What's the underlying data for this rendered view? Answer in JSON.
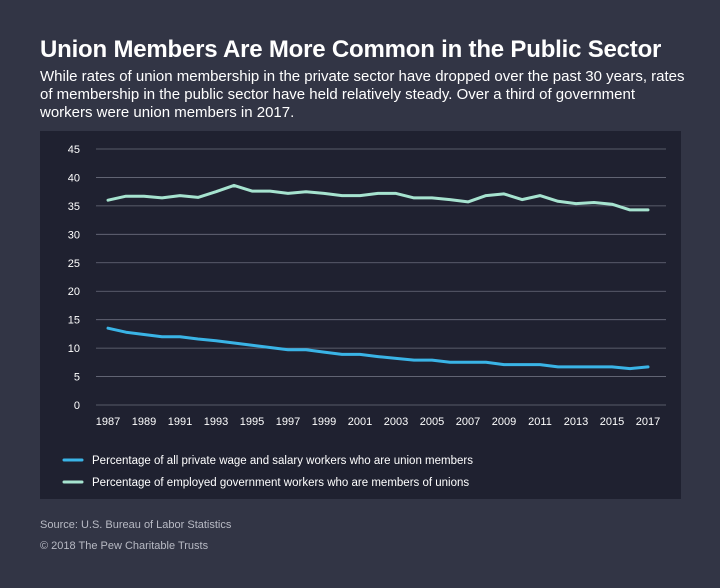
{
  "header": {
    "title": "Union Members Are More Common in the Public Sector",
    "subtitle": "While rates of union membership in the private sector have dropped over the past 30 years, rates of membership in the public sector have held relatively steady. Over a third of government workers were union members in 2017."
  },
  "footer": {
    "source": "Source: U.S. Bureau of Labor Statistics",
    "copyright": "© 2018 The Pew Charitable Trusts"
  },
  "colors": {
    "background": "#323545",
    "panel": "#1f2130",
    "private": "#3ab4e6",
    "government": "#a6e3cf",
    "grid": "#6b6e7d"
  },
  "chart_data": {
    "type": "line",
    "x": [
      1987,
      1988,
      1989,
      1990,
      1991,
      1992,
      1993,
      1994,
      1995,
      1996,
      1997,
      1998,
      1999,
      2000,
      2001,
      2002,
      2003,
      2004,
      2005,
      2006,
      2007,
      2008,
      2009,
      2010,
      2011,
      2012,
      2013,
      2014,
      2015,
      2016,
      2017
    ],
    "x_tick_labels": [
      "1987",
      "1989",
      "1991",
      "1993",
      "1995",
      "1997",
      "1999",
      "2001",
      "2003",
      "2005",
      "2007",
      "2009",
      "2011",
      "2013",
      "2015",
      "2017"
    ],
    "ylim": [
      0,
      45
    ],
    "y_tick_labels": [
      "0",
      "5",
      "10",
      "15",
      "20",
      "25",
      "30",
      "35",
      "40",
      "45"
    ],
    "grid": true,
    "legend_position": "bottom",
    "series": [
      {
        "name": "Percentage of all private wage and salary workers who are union members",
        "color": "#3ab4e6",
        "values": [
          13.5,
          12.8,
          12.4,
          12.0,
          12.0,
          11.6,
          11.3,
          10.9,
          10.5,
          10.1,
          9.7,
          9.7,
          9.3,
          8.9,
          8.9,
          8.5,
          8.2,
          7.9,
          7.9,
          7.5,
          7.5,
          7.5,
          7.1,
          7.1,
          7.1,
          6.7,
          6.7,
          6.7,
          6.7,
          6.4,
          6.7
        ]
      },
      {
        "name": "Percentage of employed government workers who are members of unions",
        "color": "#a6e3cf",
        "values": [
          36.0,
          36.7,
          36.7,
          36.4,
          36.8,
          36.5,
          37.5,
          38.6,
          37.6,
          37.6,
          37.2,
          37.5,
          37.2,
          36.8,
          36.8,
          37.2,
          37.2,
          36.4,
          36.4,
          36.1,
          35.7,
          36.8,
          37.1,
          36.1,
          36.8,
          35.8,
          35.4,
          35.6,
          35.3,
          34.3,
          34.3
        ]
      }
    ]
  }
}
